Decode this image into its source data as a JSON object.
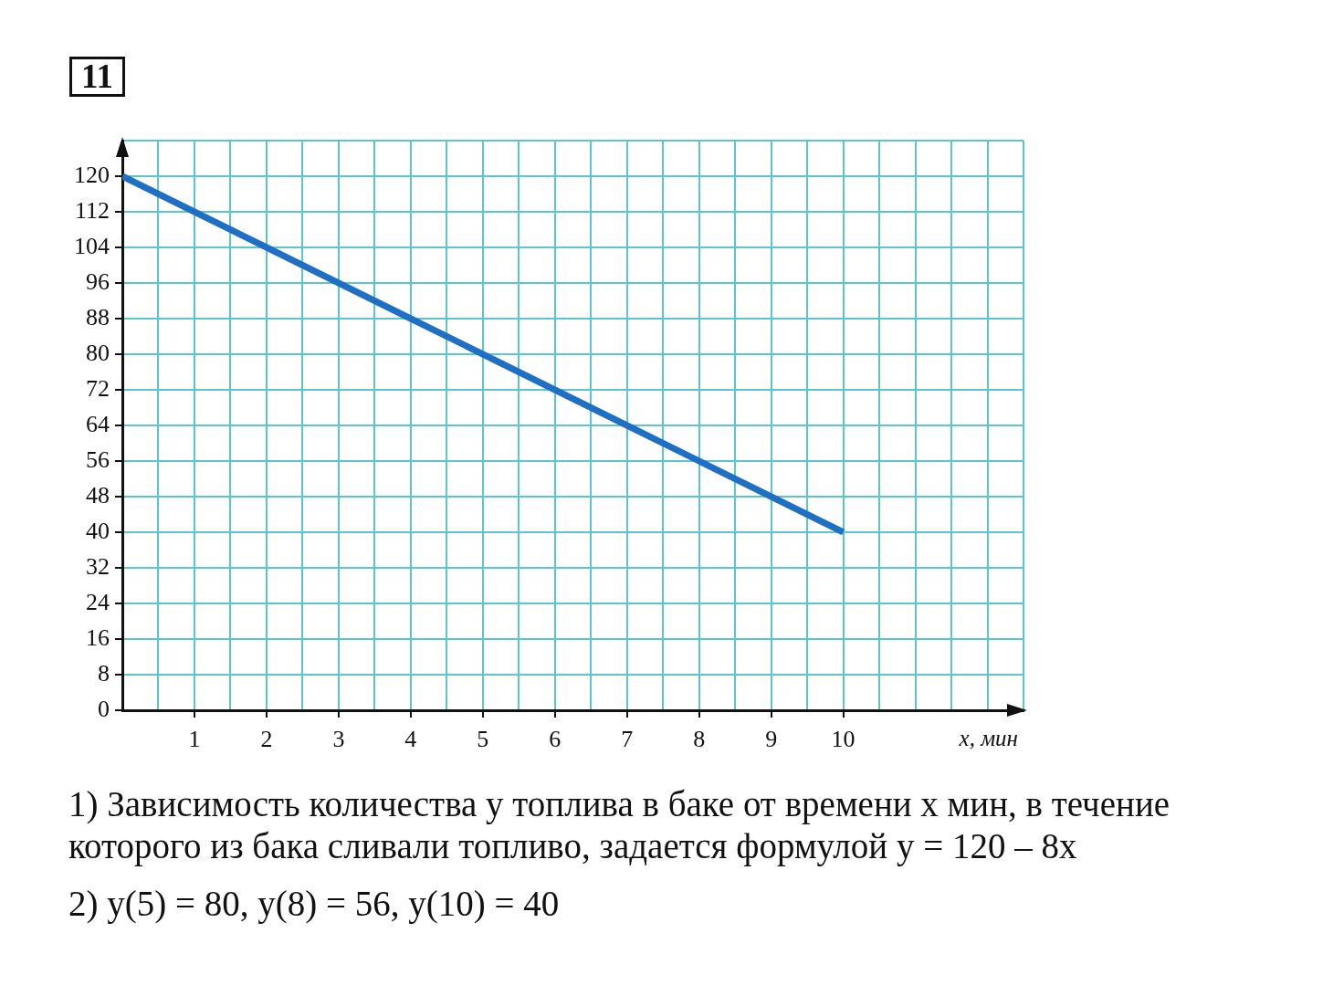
{
  "chart_data": {
    "type": "line",
    "title": "11",
    "xlabel": "x, мин",
    "annotations": [
      "1) Зависимость количества y топлива в баке от времени x мин, в течение которого из бака сливали топливо, задается формулой y = 120 – 8x",
      "2) y(5) = 80, y(8) = 56, y(10) = 40"
    ],
    "x": [
      0,
      1,
      2,
      3,
      4,
      5,
      6,
      7,
      8,
      9,
      10
    ],
    "series": [
      {
        "color": "#1f6fc5",
        "values": [
          120,
          112,
          104,
          96,
          88,
          80,
          72,
          64,
          56,
          48,
          40
        ]
      }
    ],
    "xlim": [
      0,
      12.5
    ],
    "ylim": [
      0,
      128
    ],
    "xticks": [
      {
        "value": 0.5,
        "label": null
      },
      1,
      {
        "value": 1.5,
        "label": null
      },
      2,
      {
        "value": 2.5,
        "label": null
      },
      3,
      {
        "value": 3.5,
        "label": null
      },
      4,
      {
        "value": 4.5,
        "label": null
      },
      5,
      {
        "value": 5.5,
        "label": null
      },
      6,
      {
        "value": 6.5,
        "label": null
      },
      7,
      {
        "value": 7.5,
        "label": null
      },
      8,
      {
        "value": 8.5,
        "label": null
      },
      9,
      {
        "value": 9.5,
        "label": null
      },
      10,
      {
        "value": 10.5,
        "label": null
      },
      {
        "value": 11,
        "label": null
      },
      {
        "value": 11.5,
        "label": null
      },
      {
        "value": 12,
        "label": null
      },
      {
        "value": 12.5,
        "label": null
      }
    ],
    "yticks": [
      0,
      8,
      16,
      24,
      32,
      40,
      48,
      56,
      64,
      72,
      80,
      88,
      96,
      104,
      112,
      120,
      {
        "value": 128,
        "label": null
      }
    ],
    "grid": true,
    "marker": "none",
    "line_style": "solid"
  }
}
